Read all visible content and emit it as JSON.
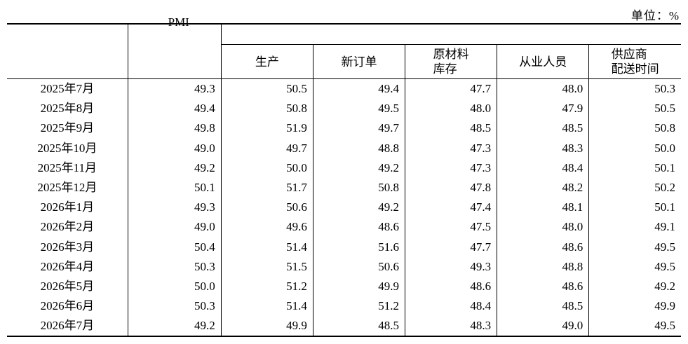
{
  "unit_label": "单位：%",
  "headers": {
    "pmi": "PMI",
    "sub": [
      {
        "line1": "生产",
        "line2": ""
      },
      {
        "line1": "新订单",
        "line2": ""
      },
      {
        "line1": "原材料",
        "line2": "库存"
      },
      {
        "line1": "从业人员",
        "line2": ""
      },
      {
        "line1": "供应商",
        "line2": "配送时间"
      }
    ]
  },
  "rows": [
    {
      "month": "2025年7月",
      "values": [
        "49.3",
        "50.5",
        "49.4",
        "47.7",
        "48.0",
        "50.3"
      ]
    },
    {
      "month": "2025年8月",
      "values": [
        "49.4",
        "50.8",
        "49.5",
        "48.0",
        "47.9",
        "50.5"
      ]
    },
    {
      "month": "2025年9月",
      "values": [
        "49.8",
        "51.9",
        "49.7",
        "48.5",
        "48.5",
        "50.8"
      ]
    },
    {
      "month": "2025年10月",
      "values": [
        "49.0",
        "49.7",
        "48.8",
        "47.3",
        "48.3",
        "50.0"
      ]
    },
    {
      "month": "2025年11月",
      "values": [
        "49.2",
        "50.0",
        "49.2",
        "47.3",
        "48.4",
        "50.1"
      ]
    },
    {
      "month": "2025年12月",
      "values": [
        "50.1",
        "51.7",
        "50.8",
        "47.8",
        "48.2",
        "50.2"
      ]
    },
    {
      "month": "2026年1月",
      "values": [
        "49.3",
        "50.6",
        "49.2",
        "47.4",
        "48.1",
        "50.1"
      ]
    },
    {
      "month": "2026年2月",
      "values": [
        "49.0",
        "49.6",
        "48.6",
        "47.5",
        "48.0",
        "49.1"
      ]
    },
    {
      "month": "2026年3月",
      "values": [
        "50.4",
        "51.4",
        "51.6",
        "47.7",
        "48.6",
        "49.5"
      ]
    },
    {
      "month": "2026年4月",
      "values": [
        "50.3",
        "51.5",
        "50.6",
        "49.3",
        "48.8",
        "49.5"
      ]
    },
    {
      "month": "2026年5月",
      "values": [
        "50.0",
        "51.2",
        "49.9",
        "48.6",
        "48.6",
        "49.2"
      ]
    },
    {
      "month": "2026年6月",
      "values": [
        "50.3",
        "51.4",
        "51.2",
        "48.4",
        "48.5",
        "49.9"
      ]
    },
    {
      "month": "2026年7月",
      "values": [
        "49.2",
        "49.9",
        "48.5",
        "48.3",
        "49.0",
        "49.5"
      ]
    }
  ]
}
